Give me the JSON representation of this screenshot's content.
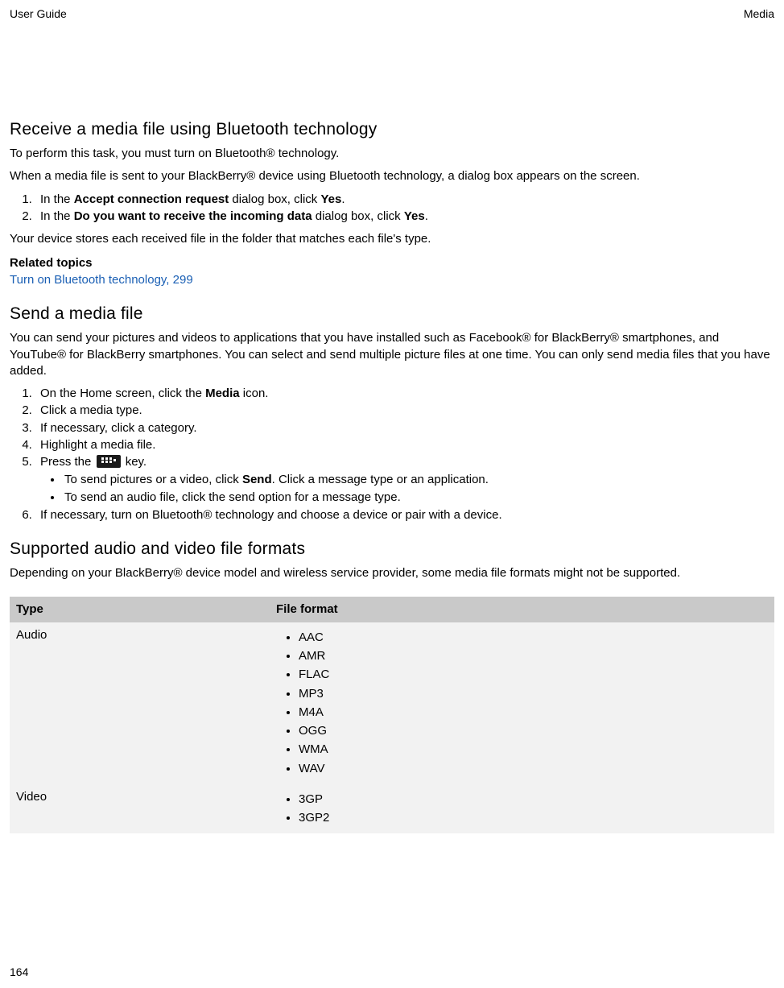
{
  "header": {
    "left": "User Guide",
    "right": "Media"
  },
  "section1": {
    "title": "Receive a media file using Bluetooth technology",
    "intro": "To perform this task, you must turn on Bluetooth® technology.",
    "desc": "When a media file is sent to your BlackBerry® device using Bluetooth technology, a dialog box appears on the screen.",
    "step1_pre": "In the ",
    "step1_bold": "Accept connection request",
    "step1_mid": " dialog box, click ",
    "step1_bold2": "Yes",
    "step1_post": ".",
    "step2_pre": "In the ",
    "step2_bold": "Do you want to receive the incoming data",
    "step2_mid": " dialog box, click ",
    "step2_bold2": "Yes",
    "step2_post": ".",
    "outro": "Your device stores each received file in the folder that matches each file's type."
  },
  "related": {
    "heading": "Related topics",
    "link_text": "Turn on Bluetooth technology, 299"
  },
  "section2": {
    "title": "Send a media file",
    "intro": "You can send your pictures and videos to applications that you have installed such as Facebook® for BlackBerry® smartphones, and YouTube® for BlackBerry smartphones. You can select and send multiple picture files at one time. You can only send media files that you have added.",
    "step1_pre": "On the Home screen, click the ",
    "step1_bold": "Media",
    "step1_post": " icon.",
    "step2": "Click a media type.",
    "step3": "If necessary, click a category.",
    "step4": "Highlight a media file.",
    "step5_pre": "Press the ",
    "step5_post": " key.",
    "bullet1_pre": "To send pictures or a video, click ",
    "bullet1_bold": "Send",
    "bullet1_post": ". Click a message type or an application.",
    "bullet2": "To send an audio file, click the send option for a message type.",
    "step6": "If necessary, turn on Bluetooth® technology and choose a device or pair with a device."
  },
  "section3": {
    "title": "Supported audio and video file formats",
    "intro": "Depending on your BlackBerry® device model and wireless service provider, some media file formats might not be supported."
  },
  "table": {
    "col1": "Type",
    "col2": "File format",
    "row1_type": "Audio",
    "audio": [
      "AAC",
      "AMR",
      "FLAC",
      "MP3",
      "M4A",
      "OGG",
      "WMA",
      "WAV"
    ],
    "row2_type": "Video",
    "video": [
      "3GP",
      "3GP2"
    ]
  },
  "page_number": "164",
  "colors": {
    "link": "#1a5fb4",
    "table_header_bg": "#c9c9c9",
    "table_cell_bg": "#f2f2f2",
    "text": "#000000",
    "background": "#ffffff"
  }
}
